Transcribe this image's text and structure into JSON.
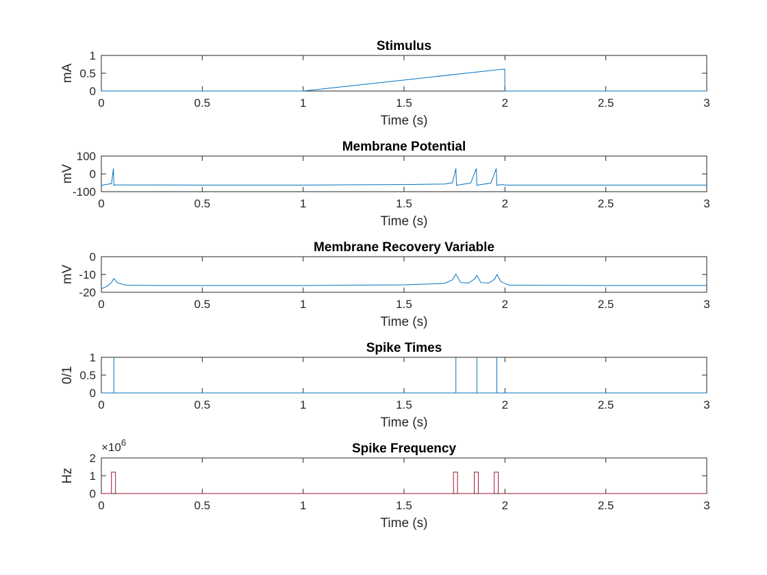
{
  "chart_data": [
    {
      "type": "line",
      "title": "Stimulus",
      "xlabel": "Time (s)",
      "ylabel": "mA",
      "xlim": [
        0,
        3
      ],
      "ylim": [
        0,
        1
      ],
      "xticks": [
        "0",
        "0.5",
        "1",
        "1.5",
        "2",
        "2.5",
        "3"
      ],
      "yticks": [
        "0",
        "0.5",
        "1"
      ],
      "color": "#0072bd",
      "series": [
        {
          "x": [
            0,
            1.0,
            1.999,
            2.0,
            3.0
          ],
          "y": [
            0,
            0,
            0.62,
            0,
            0
          ]
        }
      ]
    },
    {
      "type": "line",
      "title": "Membrane Potential",
      "xlabel": "Time (s)",
      "ylabel": "mV",
      "xlim": [
        0,
        3
      ],
      "ylim": [
        -100,
        100
      ],
      "xticks": [
        "0",
        "0.5",
        "1",
        "1.5",
        "2",
        "2.5",
        "3"
      ],
      "yticks": [
        "-100",
        "0",
        "100"
      ],
      "color": "#0072bd",
      "series": [
        {
          "x": [
            0,
            0.02,
            0.05,
            0.06,
            0.062,
            0.065,
            0.08,
            0.5,
            1.0,
            1.5,
            1.7,
            1.74,
            1.757,
            1.76,
            1.77,
            1.83,
            1.858,
            1.861,
            1.87,
            1.93,
            1.957,
            1.96,
            1.97,
            1.99,
            2.0,
            2.5,
            3.0
          ],
          "y": [
            -65,
            -60,
            -55,
            30,
            -65,
            -62,
            -62,
            -63,
            -63,
            -60,
            -57,
            -50,
            30,
            -65,
            -62,
            -52,
            30,
            -65,
            -62,
            -52,
            30,
            -65,
            -62,
            -60,
            -63,
            -63,
            -63
          ]
        }
      ]
    },
    {
      "type": "line",
      "title": "Membrane Recovery Variable",
      "xlabel": "Time (s)",
      "ylabel": "mV",
      "xlim": [
        0,
        3
      ],
      "ylim": [
        -20,
        0
      ],
      "xticks": [
        "0",
        "0.5",
        "1",
        "1.5",
        "2",
        "2.5",
        "3"
      ],
      "yticks": [
        "-20",
        "-10",
        "0"
      ],
      "color": "#0072bd",
      "series": [
        {
          "x": [
            0,
            0.03,
            0.05,
            0.062,
            0.08,
            0.12,
            0.3,
            1.0,
            1.5,
            1.7,
            1.74,
            1.757,
            1.78,
            1.82,
            1.85,
            1.861,
            1.88,
            1.92,
            1.95,
            1.96,
            1.98,
            2.02,
            2.5,
            3.0
          ],
          "y": [
            -18,
            -16.5,
            -14.5,
            -12.3,
            -14.7,
            -16,
            -16.2,
            -16.2,
            -15.8,
            -15,
            -13,
            -9.8,
            -14.5,
            -14.8,
            -12.5,
            -10.5,
            -14.5,
            -14.8,
            -12.5,
            -10,
            -14,
            -16,
            -16.2,
            -16.2
          ]
        }
      ]
    },
    {
      "type": "line",
      "title": "Spike Times",
      "xlabel": "Time (s)",
      "ylabel": "0/1",
      "xlim": [
        0,
        3
      ],
      "ylim": [
        0,
        1
      ],
      "xticks": [
        "0",
        "0.5",
        "1",
        "1.5",
        "2",
        "2.5",
        "3"
      ],
      "yticks": [
        "0",
        "0.5",
        "1"
      ],
      "color": "#0072bd",
      "series": [
        {
          "x": [
            0,
            0.062,
            0.062,
            0.062,
            1.757,
            1.757,
            1.757,
            1.861,
            1.861,
            1.861,
            1.96,
            1.96,
            1.96,
            3.0
          ],
          "y": [
            0,
            0,
            1,
            0,
            0,
            1,
            0,
            0,
            1,
            0,
            0,
            1,
            0,
            0
          ]
        }
      ]
    },
    {
      "type": "line",
      "title": "Spike Frequency",
      "xlabel": "Time (s)",
      "ylabel": "Hz",
      "exponent": "×10",
      "exponent_power": "6",
      "xlim": [
        0,
        3
      ],
      "ylim": [
        0,
        2
      ],
      "xticks": [
        "0",
        "0.5",
        "1",
        "1.5",
        "2",
        "2.5",
        "3"
      ],
      "yticks": [
        "0",
        "1",
        "2"
      ],
      "color": "#a2142f",
      "series": [
        {
          "x": [
            0,
            0.05,
            0.05,
            0.07,
            0.07,
            1.745,
            1.745,
            1.765,
            1.765,
            1.848,
            1.848,
            1.868,
            1.868,
            1.947,
            1.947,
            1.967,
            1.967,
            3.0
          ],
          "y": [
            0,
            0,
            1.2,
            1.2,
            0,
            0,
            1.2,
            1.2,
            0,
            0,
            1.2,
            1.2,
            0,
            0,
            1.2,
            1.2,
            0,
            0
          ]
        }
      ]
    }
  ]
}
